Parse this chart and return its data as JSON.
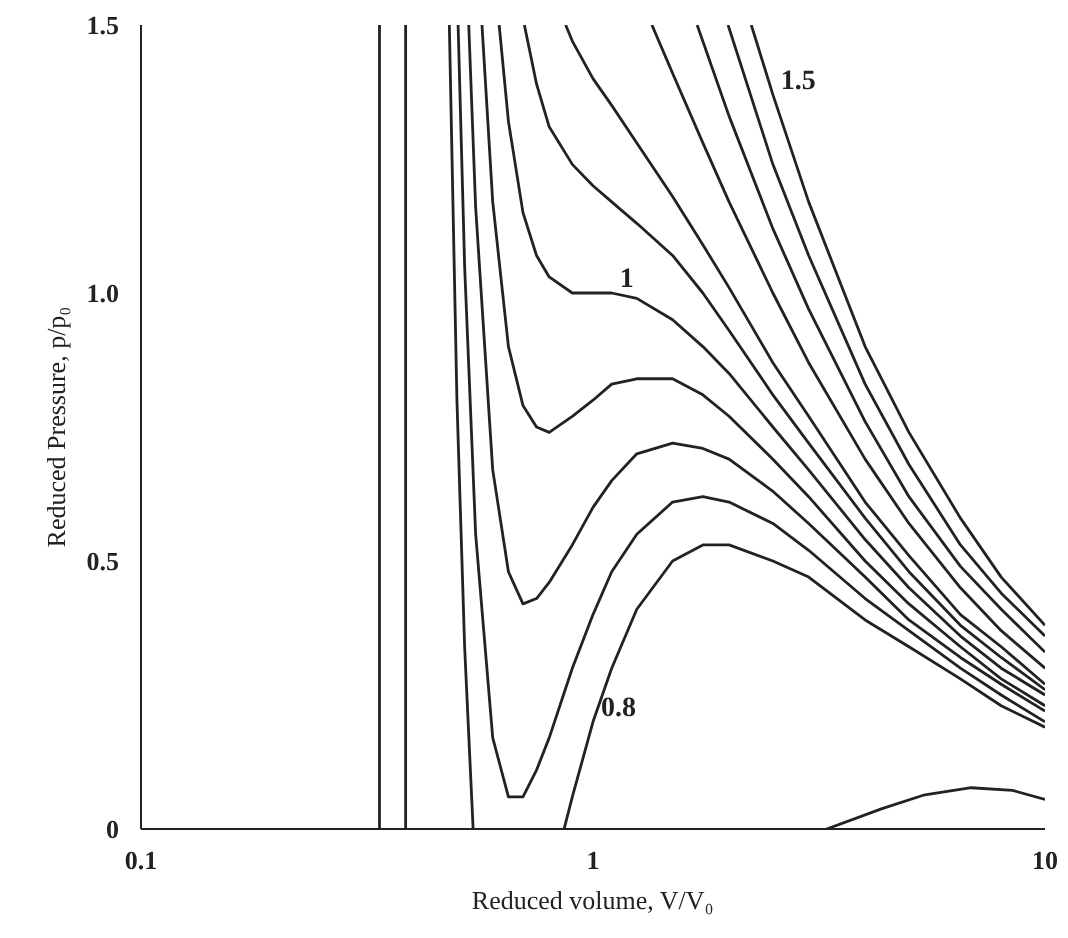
{
  "chart_data": {
    "type": "line",
    "xlabel": "Reduced volume, V/V₀",
    "ylabel": "Reduced Pressure, p/p₀",
    "log": "x",
    "grid": false,
    "xlim": [
      0.1,
      10
    ],
    "xticks": [
      0.1,
      1,
      10
    ],
    "ylim": [
      0,
      1.5
    ],
    "yticks": [
      0,
      0.5,
      {
        "value": 1,
        "label": "1.0"
      },
      1.5
    ],
    "series": [
      {
        "color": "#222222",
        "x": [
          0.337,
          0.337
        ],
        "values": [
          0,
          1.5
        ]
      },
      {
        "color": "#222222",
        "x": [
          0.385,
          0.385
        ],
        "values": [
          0,
          1.5
        ]
      },
      {
        "color": "#222222",
        "x": [
          0.481,
          0.5,
          0.52,
          0.543,
          0.7,
          0.863,
          0.9,
          1.0,
          1.1,
          1.25,
          1.5,
          1.75,
          2,
          2.5,
          3,
          4,
          5,
          6.5,
          8,
          10
        ],
        "values": [
          1.5,
          0.8,
          0.34,
          0,
          null,
          0,
          0.06,
          0.2,
          0.3,
          0.41,
          0.5,
          0.53,
          0.53,
          0.5,
          0.47,
          0.39,
          0.34,
          0.28,
          0.23,
          0.19
        ]
      },
      {
        "color": "#222222",
        "x": [
          0.503,
          0.52,
          0.55,
          0.6,
          0.65,
          0.7,
          0.75,
          0.8,
          0.9,
          1.0,
          1.1,
          1.25,
          1.5,
          1.75,
          2,
          2.5,
          3,
          4,
          5,
          6.5,
          8,
          10
        ],
        "values": [
          1.5,
          1.05,
          0.55,
          0.17,
          0.06,
          0.06,
          0.11,
          0.17,
          0.3,
          0.4,
          0.48,
          0.55,
          0.61,
          0.62,
          0.61,
          0.57,
          0.52,
          0.43,
          0.37,
          0.3,
          0.25,
          0.2
        ]
      },
      {
        "color": "#222222",
        "x": [
          0.531,
          0.55,
          0.6,
          0.65,
          0.7,
          0.75,
          0.8,
          0.9,
          1.0,
          1.1,
          1.25,
          1.5,
          1.75,
          2,
          2.5,
          3,
          4,
          5,
          6.5,
          8,
          10
        ],
        "values": [
          1.5,
          1.16,
          0.67,
          0.48,
          0.42,
          0.43,
          0.46,
          0.53,
          0.6,
          0.65,
          0.7,
          0.72,
          0.71,
          0.69,
          0.63,
          0.57,
          0.47,
          0.39,
          0.32,
          0.27,
          0.22
        ]
      },
      {
        "color": "#222222",
        "x": [
          0.568,
          0.6,
          0.65,
          0.7,
          0.75,
          0.8,
          0.9,
          1.0,
          1.1,
          1.25,
          1.5,
          1.75,
          2,
          2.5,
          3,
          4,
          5,
          6.5,
          8,
          10
        ],
        "values": [
          1.5,
          1.17,
          0.9,
          0.79,
          0.75,
          0.74,
          0.77,
          0.8,
          0.83,
          0.84,
          0.84,
          0.81,
          0.77,
          0.69,
          0.62,
          0.5,
          0.42,
          0.34,
          0.28,
          0.23
        ]
      },
      {
        "color": "#222222",
        "x": [
          0.62,
          0.65,
          0.7,
          0.75,
          0.8,
          0.9,
          1.0,
          1.1,
          1.25,
          1.5,
          1.75,
          2,
          2.5,
          3,
          4,
          5,
          6.5,
          8,
          10
        ],
        "values": [
          1.5,
          1.32,
          1.15,
          1.07,
          1.03,
          1.0,
          1.0,
          1.0,
          0.99,
          0.95,
          0.9,
          0.85,
          0.75,
          0.67,
          0.54,
          0.45,
          0.36,
          0.3,
          0.25
        ]
      },
      {
        "color": "#222222",
        "x": [
          0.705,
          0.75,
          0.8,
          0.9,
          1.0,
          1.1,
          1.25,
          1.5,
          1.75,
          2,
          2.5,
          3,
          4,
          5,
          6.5,
          8,
          10
        ],
        "values": [
          1.5,
          1.39,
          1.31,
          1.24,
          1.2,
          1.17,
          1.13,
          1.07,
          1.0,
          0.93,
          0.81,
          0.72,
          0.58,
          0.48,
          0.38,
          0.32,
          0.26
        ]
      },
      {
        "color": "#222222",
        "x": [
          0.87,
          0.9,
          1.0,
          1.1,
          1.25,
          1.5,
          1.75,
          2,
          2.5,
          3,
          4,
          5,
          6.5,
          8,
          10
        ],
        "values": [
          1.5,
          1.47,
          1.4,
          1.35,
          1.28,
          1.18,
          1.09,
          1.01,
          0.87,
          0.77,
          0.61,
          0.51,
          0.4,
          0.34,
          0.27
        ]
      },
      {
        "color": "#222222",
        "x": [
          1.35,
          1.5,
          1.75,
          2,
          2.5,
          3,
          4,
          5,
          6.5,
          8,
          10
        ],
        "values": [
          1.5,
          1.41,
          1.28,
          1.17,
          1.0,
          0.87,
          0.69,
          0.57,
          0.45,
          0.37,
          0.3
        ]
      },
      {
        "color": "#222222",
        "x": [
          1.7,
          2,
          2.5,
          3,
          4,
          5,
          6.5,
          8,
          10
        ],
        "values": [
          1.5,
          1.33,
          1.12,
          0.97,
          0.76,
          0.62,
          0.49,
          0.41,
          0.33
        ]
      },
      {
        "color": "#222222",
        "x": [
          1.99,
          2.5,
          3,
          4,
          5,
          6.5,
          8,
          10
        ],
        "values": [
          1.5,
          1.24,
          1.07,
          0.83,
          0.68,
          0.53,
          0.44,
          0.36
        ]
      },
      {
        "color": "#222222",
        "x": [
          2.24,
          2.5,
          3,
          4,
          5,
          6.5,
          8,
          10
        ],
        "values": [
          1.5,
          1.37,
          1.17,
          0.9,
          0.74,
          0.58,
          0.47,
          0.38
        ]
      },
      {
        "color": "#222222",
        "x": [
          3.29,
          4.36,
          5.38,
          6.87,
          8.48,
          10
        ],
        "values": [
          0,
          0.038,
          0.063,
          0.077,
          0.072,
          0.055
        ]
      }
    ],
    "annotations": [
      {
        "text": "1.5",
        "x": 2.5,
        "y": 1.37
      },
      {
        "text": "1",
        "x": 1.1,
        "y": 1.0
      },
      {
        "text": "0.8",
        "x": 1.0,
        "y": 0.2
      }
    ]
  }
}
